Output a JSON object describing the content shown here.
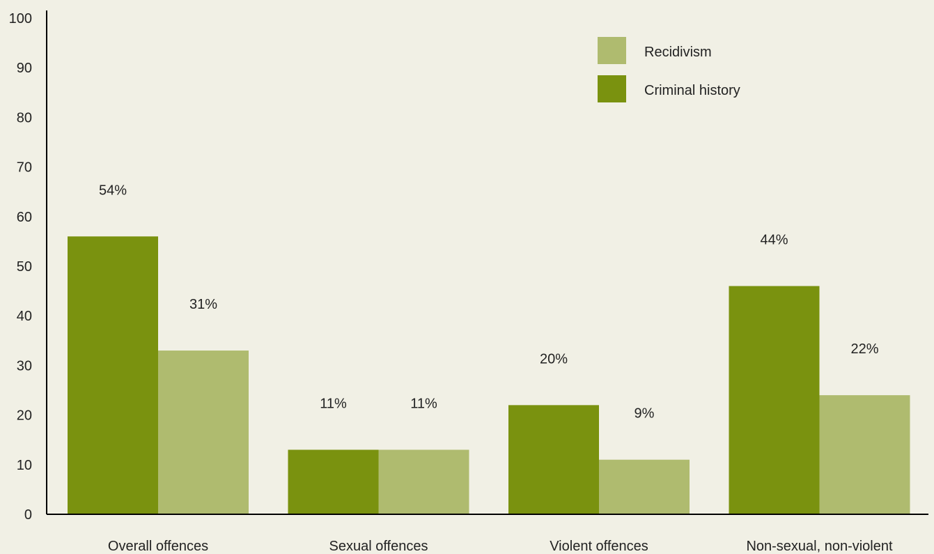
{
  "chart_data": {
    "type": "bar",
    "categories": [
      "Overall offences",
      "Sexual offences",
      "Violent offences",
      "Non-sexual, non-violent"
    ],
    "series": [
      {
        "name": "Criminal history",
        "values": [
          54,
          11,
          20,
          44
        ],
        "labels": [
          "54%",
          "11%",
          "20%",
          "44%"
        ],
        "color": "#7a920f"
      },
      {
        "name": "Recidivism",
        "values": [
          31,
          11,
          9,
          22
        ],
        "labels": [
          "31%",
          "11%",
          "9%",
          "22%"
        ],
        "color": "#afbb6f"
      }
    ],
    "legend_order": [
      "Recidivism",
      "Criminal history"
    ],
    "ylim": [
      0,
      100
    ],
    "yticks": [
      0,
      10,
      20,
      30,
      40,
      50,
      60,
      70,
      80,
      90,
      100
    ],
    "title": "",
    "xlabel": "",
    "ylabel": "",
    "grid": false,
    "legend_position": "top-right",
    "background": "#f1f0e5",
    "axis_color": "#000000"
  }
}
